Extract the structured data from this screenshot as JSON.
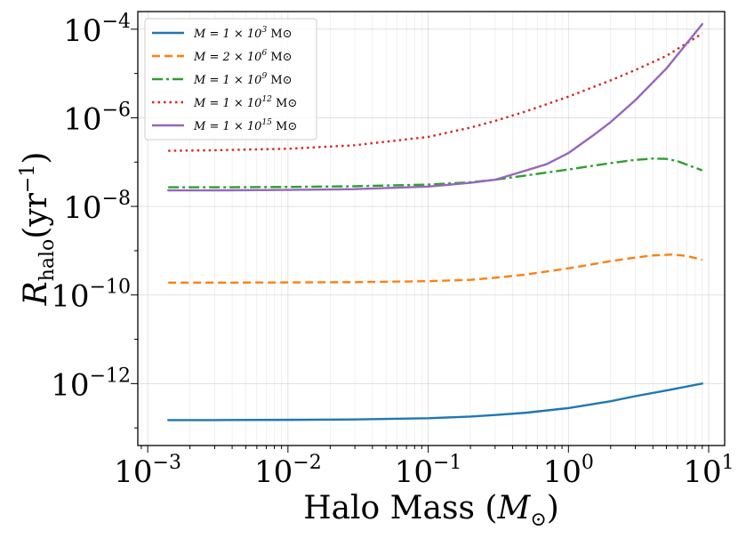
{
  "chart_data": {
    "type": "line",
    "xscale": "log",
    "yscale": "log",
    "xlim": [
      0.00085,
      13
    ],
    "ylim": [
      4e-14,
      0.00025
    ],
    "xlabel_text": "Halo Mass (",
    "xlabel_symbol": "M",
    "xlabel_sub": "⊙",
    "xlabel_close": ")",
    "ylabel_symbol": "R",
    "ylabel_sub": "halo",
    "ylabel_unit": "(yr",
    "ylabel_unit_exp": "−1",
    "ylabel_close": ")",
    "grid": true,
    "legend_position": "top-left",
    "xticks": [
      {
        "value": 0.001,
        "base": "10",
        "exp": "−3"
      },
      {
        "value": 0.01,
        "base": "10",
        "exp": "−2"
      },
      {
        "value": 0.1,
        "base": "10",
        "exp": "−1"
      },
      {
        "value": 1,
        "base": "10",
        "exp": "0"
      },
      {
        "value": 10,
        "base": "10",
        "exp": "1"
      }
    ],
    "yticks": [
      {
        "value": 1e-12,
        "base": "10",
        "exp": "−12"
      },
      {
        "value": 1e-10,
        "base": "10",
        "exp": "−10"
      },
      {
        "value": 1e-08,
        "base": "10",
        "exp": "−8"
      },
      {
        "value": 1e-06,
        "base": "10",
        "exp": "−6"
      },
      {
        "value": 0.0001,
        "base": "10",
        "exp": "−4"
      }
    ],
    "series": [
      {
        "name": "M = 1 × 10^3 M⊙",
        "label_prefix": "M = 1 × 10",
        "label_exp": "3",
        "label_suffix": " M⊙",
        "color": "#1f77b4",
        "dash": "",
        "x": [
          0.0014,
          0.003,
          0.01,
          0.03,
          0.1,
          0.2,
          0.3,
          0.5,
          1,
          2,
          3,
          5,
          9
        ],
        "y": [
          1.5e-13,
          1.5e-13,
          1.52e-13,
          1.55e-13,
          1.65e-13,
          1.8e-13,
          1.95e-13,
          2.2e-13,
          2.8e-13,
          4e-13,
          5.2e-13,
          7e-13,
          1e-12
        ]
      },
      {
        "name": "M = 2 × 10^6 M⊙",
        "label_prefix": "M = 2 × 10",
        "label_exp": "6",
        "label_suffix": " M⊙",
        "color": "#ff7f0e",
        "dash": "9,5",
        "x": [
          0.0014,
          0.003,
          0.01,
          0.03,
          0.1,
          0.2,
          0.3,
          0.5,
          1,
          2,
          3,
          4,
          5.5,
          7,
          9
        ],
        "y": [
          1.9e-10,
          1.9e-10,
          1.92e-10,
          1.95e-10,
          2.05e-10,
          2.2e-10,
          2.45e-10,
          2.9e-10,
          4e-10,
          5.8e-10,
          7e-10,
          7.8e-10,
          8.2e-10,
          7.6e-10,
          6.2e-10
        ]
      },
      {
        "name": "M = 1 × 10^9 M⊙",
        "label_prefix": "M = 1 × 10",
        "label_exp": "9",
        "label_suffix": " M⊙",
        "color": "#2ca02c",
        "dash": "12,4,3,4",
        "x": [
          0.0014,
          0.003,
          0.01,
          0.03,
          0.1,
          0.2,
          0.3,
          0.5,
          1,
          2,
          3,
          4,
          5,
          6,
          7,
          9
        ],
        "y": [
          2.7e-08,
          2.7e-08,
          2.75e-08,
          2.85e-08,
          3.1e-08,
          3.5e-08,
          4e-08,
          5e-08,
          6.8e-08,
          9.5e-08,
          1.12e-07,
          1.2e-07,
          1.18e-07,
          1.05e-07,
          8.7e-08,
          6.5e-08
        ]
      },
      {
        "name": "M = 1 × 10^12 M⊙",
        "label_prefix": "M = 1 × 10",
        "label_exp": "12",
        "label_suffix": " M⊙",
        "color": "#d62728",
        "dash": "2.5,4",
        "x": [
          0.0014,
          0.003,
          0.01,
          0.03,
          0.1,
          0.2,
          0.3,
          0.5,
          1,
          2,
          3,
          5,
          9
        ],
        "y": [
          1.8e-07,
          1.85e-07,
          2e-07,
          2.4e-07,
          3.7e-07,
          6e-07,
          8.5e-07,
          1.4e-06,
          3e-06,
          7e-06,
          1.2e-05,
          2.5e-05,
          8e-05
        ]
      },
      {
        "name": "M = 1 × 10^15 M⊙",
        "label_prefix": "M = 1 × 10",
        "label_exp": "15",
        "label_suffix": " M⊙",
        "color": "#9467bd",
        "dash": "",
        "x": [
          0.0014,
          0.003,
          0.01,
          0.03,
          0.1,
          0.2,
          0.3,
          0.5,
          0.7,
          1,
          1.5,
          2,
          3,
          5,
          9
        ],
        "y": [
          2.3e-08,
          2.3e-08,
          2.35e-08,
          2.45e-08,
          2.8e-08,
          3.4e-08,
          4e-08,
          6.5e-08,
          9e-08,
          1.6e-07,
          4e-07,
          8e-07,
          2.5e-06,
          1.3e-05,
          0.00013
        ]
      }
    ]
  }
}
